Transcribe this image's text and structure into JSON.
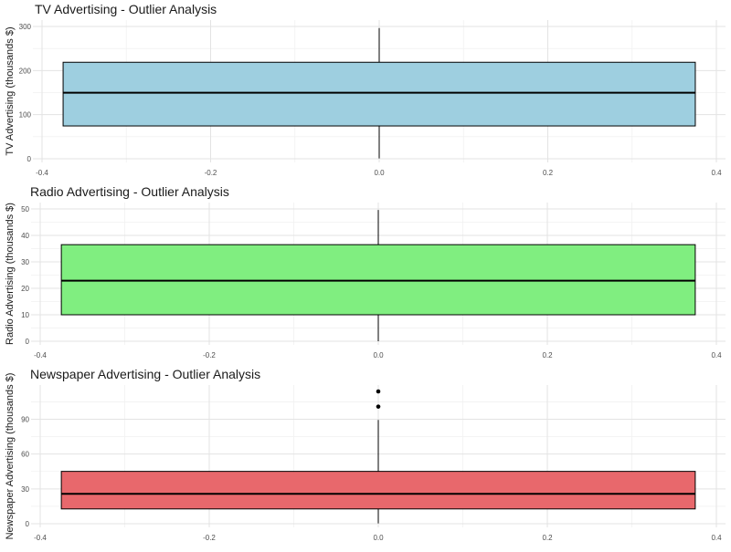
{
  "chart_data": [
    {
      "type": "boxplot",
      "title": "TV Advertising - Outlier Analysis",
      "ylabel": "TV Advertising (thousands $)",
      "xlabel": "",
      "xlim": [
        -0.4,
        0.4
      ],
      "ylim": [
        0,
        300
      ],
      "x_ticks": [
        "-0.4",
        "-0.2",
        "0.0",
        "0.2",
        "0.4"
      ],
      "y_ticks": [
        "0",
        "100",
        "200",
        "300"
      ],
      "box": {
        "min": 0.7,
        "q1": 74.4,
        "median": 149.8,
        "q3": 218.8,
        "max": 296.4,
        "x_left": -0.375,
        "x_right": 0.375
      },
      "outliers": [],
      "color": "#9ecfe0",
      "grid": true
    },
    {
      "type": "boxplot",
      "title": "Radio Advertising - Outlier Analysis",
      "ylabel": "Radio Advertising (thousands $)",
      "xlabel": "",
      "xlim": [
        -0.4,
        0.4
      ],
      "ylim": [
        0,
        50
      ],
      "x_ticks": [
        "-0.4",
        "-0.2",
        "0.0",
        "0.2",
        "0.4"
      ],
      "y_ticks": [
        "0",
        "10",
        "20",
        "30",
        "40",
        "50"
      ],
      "box": {
        "min": 0.0,
        "q1": 10.0,
        "median": 22.9,
        "q3": 36.5,
        "max": 49.6,
        "x_left": -0.375,
        "x_right": 0.375
      },
      "outliers": [],
      "color": "#80ee80",
      "grid": true
    },
    {
      "type": "boxplot",
      "title": "Newspaper Advertising - Outlier Analysis",
      "ylabel": "Newspaper Advertising (thousands $)",
      "xlabel": "",
      "xlim": [
        -0.4,
        0.4
      ],
      "ylim": [
        0,
        114
      ],
      "x_ticks": [
        "-0.4",
        "-0.2",
        "0.0",
        "0.2",
        "0.4"
      ],
      "y_ticks": [
        "0",
        "30",
        "60",
        "90"
      ],
      "box": {
        "min": 0.3,
        "q1": 12.75,
        "median": 25.75,
        "q3": 45.1,
        "max": 89.4,
        "x_left": -0.375,
        "x_right": 0.375
      },
      "outliers": [
        100.9,
        114.0
      ],
      "color": "#e8686c",
      "grid": true
    }
  ]
}
